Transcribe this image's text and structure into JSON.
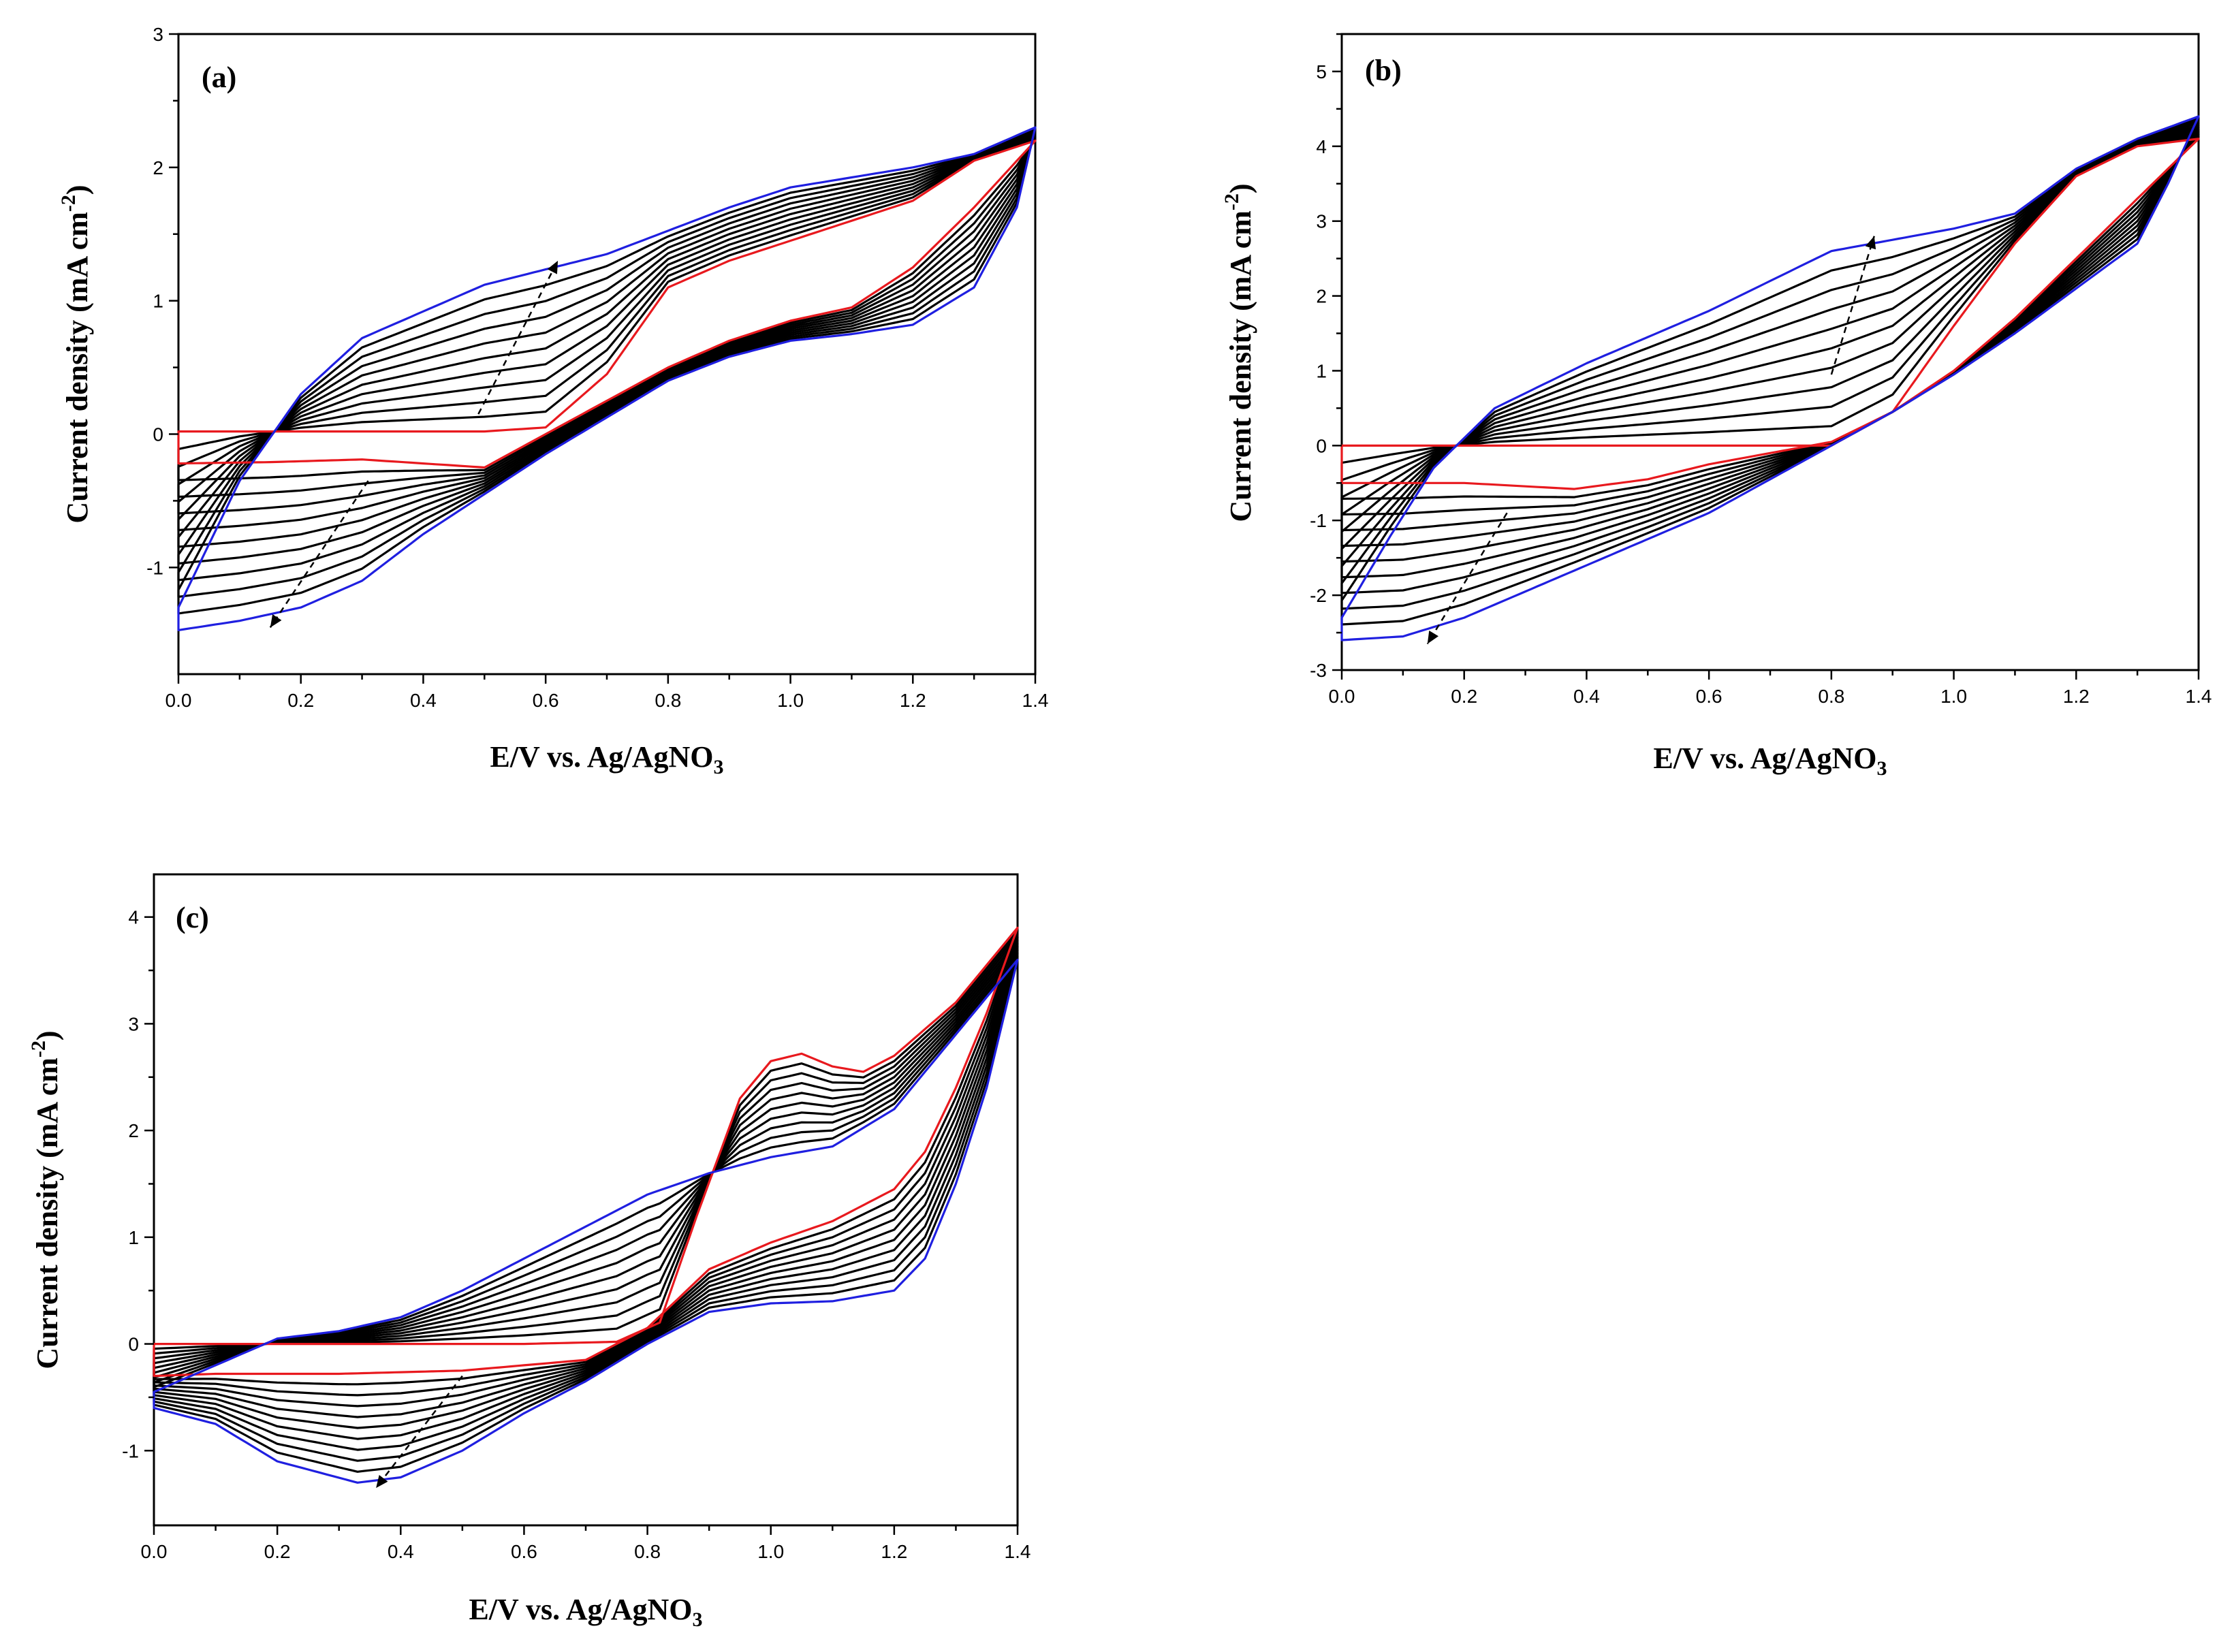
{
  "chart_data": [
    {
      "type": "line",
      "panel": "(a)",
      "xlabel": "E/V vs. Ag/AgNO",
      "xlabel_sub": "3",
      "ylabel": "Current density (mA cm",
      "ylabel_sup": "-2",
      "ylabel_end": ")",
      "xlim": [
        0,
        1.4
      ],
      "ylim": [
        -1.8,
        3
      ],
      "xticks": [
        "0.0",
        "0.2",
        "0.4",
        "0.6",
        "0.8",
        "1.0",
        "1.2",
        "1.4"
      ],
      "yticks": [
        "-1",
        "0",
        "1",
        "2",
        "3"
      ],
      "ytick_values": [
        -1,
        0,
        1,
        2,
        3
      ],
      "colors": {
        "first": "#e8191e",
        "last": "#1f1fe0",
        "middle": "#000000"
      },
      "curve_count": 11,
      "first_cycle": {
        "anodic": [
          [
            0,
            0.02
          ],
          [
            0.5,
            0.02
          ],
          [
            0.6,
            0.05
          ],
          [
            0.7,
            0.45
          ],
          [
            0.8,
            1.1
          ],
          [
            0.9,
            1.3
          ],
          [
            1.0,
            1.45
          ],
          [
            1.1,
            1.6
          ],
          [
            1.2,
            1.75
          ],
          [
            1.3,
            2.05
          ],
          [
            1.4,
            2.2
          ]
        ],
        "cathodic": [
          [
            1.4,
            2.2
          ],
          [
            1.35,
            1.95
          ],
          [
            1.3,
            1.7
          ],
          [
            1.2,
            1.25
          ],
          [
            1.1,
            0.95
          ],
          [
            1.0,
            0.85
          ],
          [
            0.9,
            0.7
          ],
          [
            0.8,
            0.5
          ],
          [
            0.7,
            0.25
          ],
          [
            0.6,
            0.0
          ],
          [
            0.5,
            -0.25
          ],
          [
            0.4,
            -0.22
          ],
          [
            0.3,
            -0.19
          ],
          [
            0.15,
            -0.21
          ],
          [
            0,
            -0.22
          ]
        ]
      },
      "last_cycle": {
        "anodic": [
          [
            0,
            -1.3
          ],
          [
            0.1,
            -0.35
          ],
          [
            0.2,
            0.3
          ],
          [
            0.3,
            0.72
          ],
          [
            0.5,
            1.12
          ],
          [
            0.7,
            1.35
          ],
          [
            0.9,
            1.7
          ],
          [
            1.0,
            1.85
          ],
          [
            1.2,
            2.0
          ],
          [
            1.3,
            2.1
          ],
          [
            1.4,
            2.3
          ]
        ],
        "cathodic": [
          [
            1.4,
            2.3
          ],
          [
            1.37,
            1.7
          ],
          [
            1.3,
            1.1
          ],
          [
            1.2,
            0.82
          ],
          [
            1.1,
            0.75
          ],
          [
            1.0,
            0.7
          ],
          [
            0.9,
            0.58
          ],
          [
            0.8,
            0.4
          ],
          [
            0.6,
            -0.15
          ],
          [
            0.4,
            -0.75
          ],
          [
            0.3,
            -1.1
          ],
          [
            0.2,
            -1.3
          ],
          [
            0.1,
            -1.4
          ],
          [
            0,
            -1.47
          ]
        ]
      },
      "anodic_arrow": {
        "from": [
          0.49,
          0.15
        ],
        "to": [
          0.62,
          1.3
        ]
      },
      "cathodic_arrow": {
        "from": [
          0.31,
          -0.35
        ],
        "to": [
          0.15,
          -1.45
        ]
      }
    },
    {
      "type": "line",
      "panel": "(b)",
      "xlabel": "E/V vs. Ag/AgNO",
      "xlabel_sub": "3",
      "ylabel": "Current density (mA cm",
      "ylabel_sup": "-2",
      "ylabel_end": ")",
      "xlim": [
        0,
        1.4
      ],
      "ylim": [
        -3,
        5.5
      ],
      "xticks": [
        "0.0",
        "0.2",
        "0.4",
        "0.6",
        "0.8",
        "1.0",
        "1.2",
        "1.4"
      ],
      "yticks": [
        "-3",
        "-2",
        "-1",
        "0",
        "1",
        "2",
        "3",
        "4",
        "5"
      ],
      "ytick_values": [
        -3,
        -2,
        -1,
        0,
        1,
        2,
        3,
        4,
        5
      ],
      "colors": {
        "first": "#e8191e",
        "last": "#1f1fe0",
        "middle": "#000000"
      },
      "curve_count": 11,
      "first_cycle": {
        "anodic": [
          [
            0,
            0.0
          ],
          [
            0.6,
            0.0
          ],
          [
            0.8,
            0.0
          ],
          [
            0.9,
            0.45
          ],
          [
            1.0,
            1.6
          ],
          [
            1.1,
            2.7
          ],
          [
            1.2,
            3.6
          ],
          [
            1.3,
            4.0
          ],
          [
            1.4,
            4.1
          ]
        ],
        "cathodic": [
          [
            1.4,
            4.1
          ],
          [
            1.3,
            3.3
          ],
          [
            1.2,
            2.5
          ],
          [
            1.1,
            1.7
          ],
          [
            1.0,
            1.0
          ],
          [
            0.9,
            0.45
          ],
          [
            0.8,
            0.05
          ],
          [
            0.6,
            -0.25
          ],
          [
            0.5,
            -0.45
          ],
          [
            0.38,
            -0.58
          ],
          [
            0.2,
            -0.5
          ],
          [
            0,
            -0.5
          ]
        ]
      },
      "last_cycle": {
        "anodic": [
          [
            0,
            -2.3
          ],
          [
            0.08,
            -1.2
          ],
          [
            0.15,
            -0.3
          ],
          [
            0.25,
            0.5
          ],
          [
            0.4,
            1.1
          ],
          [
            0.6,
            1.8
          ],
          [
            0.8,
            2.6
          ],
          [
            1.0,
            2.9
          ],
          [
            1.1,
            3.1
          ],
          [
            1.2,
            3.7
          ],
          [
            1.3,
            4.1
          ],
          [
            1.4,
            4.4
          ]
        ],
        "cathodic": [
          [
            1.4,
            4.4
          ],
          [
            1.35,
            3.5
          ],
          [
            1.3,
            2.7
          ],
          [
            1.2,
            2.1
          ],
          [
            1.1,
            1.5
          ],
          [
            1.0,
            0.95
          ],
          [
            0.9,
            0.45
          ],
          [
            0.8,
            0.0
          ],
          [
            0.6,
            -0.9
          ],
          [
            0.4,
            -1.6
          ],
          [
            0.2,
            -2.3
          ],
          [
            0.1,
            -2.55
          ],
          [
            0,
            -2.6
          ]
        ]
      },
      "anodic_arrow": {
        "from": [
          0.8,
          0.95
        ],
        "to": [
          0.87,
          2.8
        ]
      },
      "cathodic_arrow": {
        "from": [
          0.27,
          -0.9
        ],
        "to": [
          0.14,
          -2.65
        ]
      }
    },
    {
      "type": "line",
      "panel": "(c)",
      "xlabel": "E/V vs. Ag/AgNO",
      "xlabel_sub": "3",
      "ylabel": "Current density (mA cm",
      "ylabel_sup": "-2",
      "ylabel_end": ")",
      "xlim": [
        0,
        1.4
      ],
      "ylim": [
        -1.7,
        4.4
      ],
      "xticks": [
        "0.0",
        "0.2",
        "0.4",
        "0.6",
        "0.8",
        "1.0",
        "1.2",
        "1.4"
      ],
      "yticks": [
        "-1",
        "0",
        "1",
        "2",
        "3",
        "4"
      ],
      "ytick_values": [
        -1,
        0,
        1,
        2,
        3,
        4
      ],
      "colors": {
        "first": "#e8191e",
        "last": "#1f1fe0",
        "middle": "#000000"
      },
      "curve_count": 11,
      "first_cycle": {
        "anodic": [
          [
            0,
            0.0
          ],
          [
            0.6,
            0.0
          ],
          [
            0.75,
            0.02
          ],
          [
            0.82,
            0.2
          ],
          [
            0.88,
            1.2
          ],
          [
            0.95,
            2.3
          ],
          [
            1.0,
            2.65
          ],
          [
            1.05,
            2.72
          ],
          [
            1.1,
            2.6
          ],
          [
            1.15,
            2.55
          ],
          [
            1.2,
            2.7
          ],
          [
            1.3,
            3.2
          ],
          [
            1.4,
            3.9
          ]
        ],
        "cathodic": [
          [
            1.4,
            3.9
          ],
          [
            1.35,
            3.1
          ],
          [
            1.3,
            2.4
          ],
          [
            1.25,
            1.8
          ],
          [
            1.2,
            1.45
          ],
          [
            1.1,
            1.15
          ],
          [
            1.0,
            0.95
          ],
          [
            0.9,
            0.7
          ],
          [
            0.8,
            0.15
          ],
          [
            0.7,
            -0.15
          ],
          [
            0.5,
            -0.25
          ],
          [
            0.3,
            -0.28
          ],
          [
            0.1,
            -0.28
          ],
          [
            0,
            -0.3
          ]
        ]
      },
      "last_cycle": {
        "anodic": [
          [
            0,
            -0.45
          ],
          [
            0.1,
            -0.2
          ],
          [
            0.2,
            0.05
          ],
          [
            0.3,
            0.12
          ],
          [
            0.4,
            0.25
          ],
          [
            0.5,
            0.5
          ],
          [
            0.6,
            0.8
          ],
          [
            0.7,
            1.1
          ],
          [
            0.8,
            1.4
          ],
          [
            0.9,
            1.6
          ],
          [
            1.0,
            1.75
          ],
          [
            1.1,
            1.85
          ],
          [
            1.2,
            2.2
          ],
          [
            1.3,
            2.9
          ],
          [
            1.4,
            3.6
          ]
        ],
        "cathodic": [
          [
            1.4,
            3.6
          ],
          [
            1.35,
            2.4
          ],
          [
            1.3,
            1.5
          ],
          [
            1.25,
            0.8
          ],
          [
            1.2,
            0.5
          ],
          [
            1.1,
            0.4
          ],
          [
            1.0,
            0.38
          ],
          [
            0.9,
            0.3
          ],
          [
            0.8,
            0.0
          ],
          [
            0.7,
            -0.35
          ],
          [
            0.6,
            -0.65
          ],
          [
            0.5,
            -1.0
          ],
          [
            0.4,
            -1.25
          ],
          [
            0.33,
            -1.3
          ],
          [
            0.2,
            -1.1
          ],
          [
            0.1,
            -0.75
          ],
          [
            0,
            -0.6
          ]
        ]
      },
      "anodic_arrow": null,
      "cathodic_arrow": {
        "from": [
          0.5,
          -0.3
        ],
        "to": [
          0.36,
          -1.35
        ]
      }
    }
  ]
}
